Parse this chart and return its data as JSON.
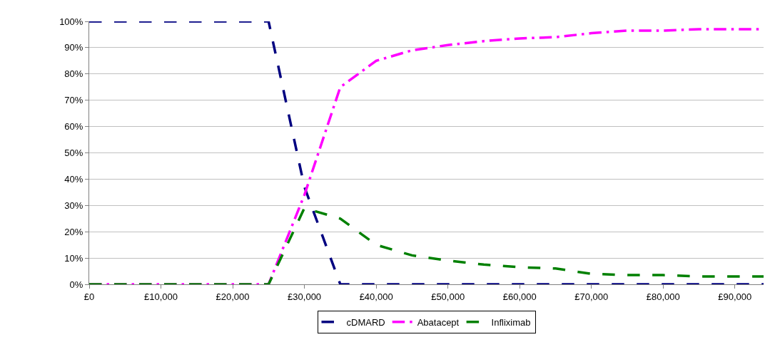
{
  "chart_data": {
    "type": "line",
    "x": [
      0,
      5000,
      10000,
      15000,
      20000,
      25000,
      30000,
      35000,
      40000,
      45000,
      50000,
      55000,
      60000,
      65000,
      70000,
      75000,
      80000,
      85000,
      90000,
      94000
    ],
    "series": [
      {
        "name": "cDMARD",
        "color": "#000080",
        "line_style": "dashed",
        "values": [
          100,
          100,
          100,
          100,
          100,
          100,
          37,
          0,
          0,
          0,
          0,
          0,
          0,
          0,
          0,
          0,
          0,
          0,
          0,
          0
        ]
      },
      {
        "name": "Abatacept",
        "color": "#ff00ff",
        "line_style": "dashdot",
        "values": [
          0,
          0,
          0,
          0,
          0,
          0,
          34,
          75,
          85,
          89,
          91,
          92.5,
          93.5,
          94,
          95.5,
          96.5,
          96.5,
          97,
          97,
          97
        ]
      },
      {
        "name": "Infliximab",
        "color": "#008000",
        "line_style": "dashed",
        "values": [
          0,
          0,
          0,
          0,
          0,
          0,
          29,
          25,
          15,
          11,
          9,
          7.5,
          6.5,
          6,
          4,
          3.5,
          3.5,
          3,
          3,
          3
        ]
      }
    ],
    "xlim": [
      0,
      94000
    ],
    "xticks": [
      {
        "value": 0,
        "label": "£0"
      },
      {
        "value": 10000,
        "label": "£10,000"
      },
      {
        "value": 20000,
        "label": "£20,000"
      },
      {
        "value": 30000,
        "label": "£30,000"
      },
      {
        "value": 40000,
        "label": "£40,000"
      },
      {
        "value": 50000,
        "label": "£50,000"
      },
      {
        "value": 60000,
        "label": "£60,000"
      },
      {
        "value": 70000,
        "label": "£70,000"
      },
      {
        "value": 80000,
        "label": "£80,000"
      },
      {
        "value": 90000,
        "label": "£90,000"
      }
    ],
    "ylim": [
      0,
      100
    ],
    "yticks": [
      {
        "value": 0,
        "label": "0%"
      },
      {
        "value": 10,
        "label": "10%"
      },
      {
        "value": 20,
        "label": "20%"
      },
      {
        "value": 30,
        "label": "30%"
      },
      {
        "value": 40,
        "label": "40%"
      },
      {
        "value": 50,
        "label": "50%"
      },
      {
        "value": 60,
        "label": "60%"
      },
      {
        "value": 70,
        "label": "70%"
      },
      {
        "value": 80,
        "label": "80%"
      },
      {
        "value": 90,
        "label": "90%"
      },
      {
        "value": 100,
        "label": "100%"
      }
    ],
    "grid": "y",
    "legend": "bottom",
    "marker": "none"
  }
}
